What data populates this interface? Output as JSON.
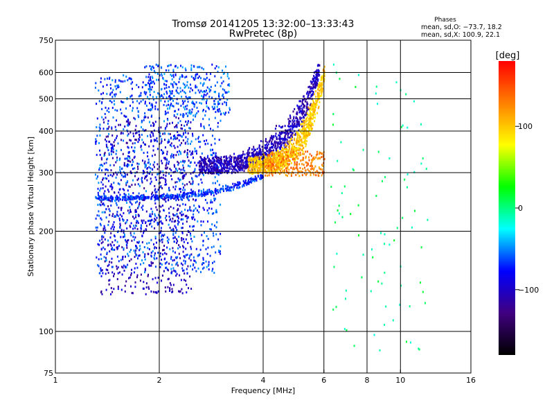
{
  "chart_data": {
    "type": "scatter",
    "title": "Tromsø 20141205 13:32:00–13:33:43",
    "subtitle": "RwPretec (8p)",
    "xlabel": "Frequency [MHz]",
    "ylabel": "Stationary phase Virtual Height [km]",
    "x_scale": "log",
    "y_scale": "log",
    "xlim": [
      1,
      16
    ],
    "ylim": [
      75,
      750
    ],
    "x_ticks": [
      1,
      2,
      4,
      6,
      8,
      10,
      16
    ],
    "x_tick_labels": [
      "1",
      "2",
      "4",
      "6",
      "8",
      "10",
      "16"
    ],
    "y_ticks": [
      75,
      100,
      200,
      300,
      400,
      500,
      600,
      750
    ],
    "y_tick_labels": [
      "75",
      "100",
      "200",
      "300",
      "400",
      "500",
      "600",
      "750"
    ],
    "grid": true,
    "stats": {
      "heading": "Phases",
      "line_o": "mean, sd,O: −73.7, 18.2",
      "line_x": "mean, sd,X: 100.9, 22.1"
    },
    "colorbar": {
      "label": "[deg]",
      "range": [
        -180,
        180
      ],
      "ticks": [
        100,
        0,
        -100
      ],
      "tick_labels": [
        "100",
        "0",
        "−100"
      ],
      "colors": [
        "#ff0000",
        "#ff8000",
        "#ffff00",
        "#00ff00",
        "#00ffff",
        "#0000ff",
        "#400080",
        "#000000"
      ]
    },
    "series": [
      {
        "x_range": [
          1.35,
          2.5
        ],
        "y_range": [
          130,
          450
        ],
        "phase": -105,
        "count": 700
      },
      {
        "x_range": [
          1.3,
          3.0
        ],
        "y_range": [
          150,
          600
        ],
        "phase": -65,
        "count": 1100
      },
      {
        "x_range": [
          1.8,
          3.2
        ],
        "y_range": [
          450,
          640
        ],
        "phase": -60,
        "count": 250
      },
      {
        "trace": "o",
        "x_range": [
          1.3,
          4.0
        ],
        "y_range": [
          250,
          300
        ],
        "phase": -70,
        "count": 400
      },
      {
        "trace": "o",
        "x_range": [
          2.6,
          5.8
        ],
        "y_range": [
          300,
          650
        ],
        "phase": -105,
        "count": 1000
      },
      {
        "trace": "x",
        "x_range": [
          3.6,
          6.0
        ],
        "y_range": [
          300,
          640
        ],
        "phase": 100,
        "count": 900
      },
      {
        "x_range": [
          4.0,
          6.0
        ],
        "y_range": [
          295,
          350
        ],
        "phase": 130,
        "count": 250
      },
      {
        "x_range": [
          6.0,
          12.0
        ],
        "y_range": [
          85,
          650
        ],
        "phase": 0,
        "count": 90
      }
    ]
  }
}
